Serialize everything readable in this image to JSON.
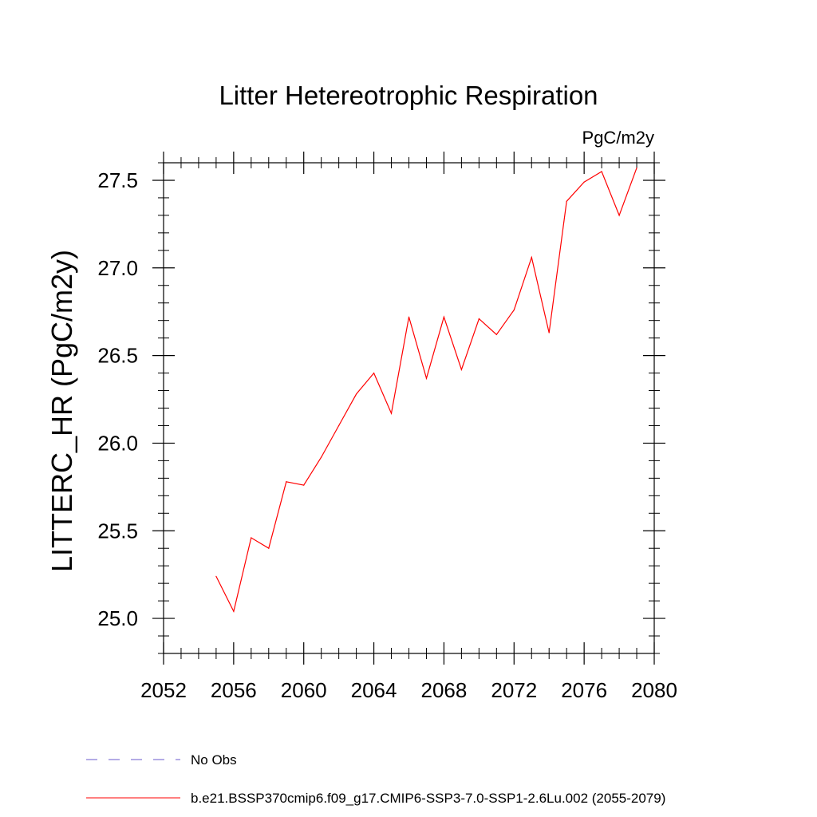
{
  "chart_data": {
    "type": "line",
    "title": "Litter Hetereotrophic Respiration",
    "units": "PgC/m2y",
    "ylabel": "LITTERC_HR  (PgC/m2y)",
    "xlabel": "",
    "xlim": [
      2052,
      2080
    ],
    "ylim": [
      24.8,
      27.6
    ],
    "xticks": [
      2052,
      2056,
      2060,
      2064,
      2068,
      2072,
      2076,
      2080
    ],
    "xtick_labels": [
      "2052",
      "2056",
      "2060",
      "2064",
      "2068",
      "2072",
      "2076",
      "2080"
    ],
    "yticks": [
      25.0,
      25.5,
      26.0,
      26.5,
      27.0,
      27.5
    ],
    "ytick_labels": [
      "25.0",
      "25.5",
      "26.0",
      "26.5",
      "27.0",
      "27.5"
    ],
    "x_minor_step": 1,
    "y_minor_step": 0.1,
    "series": [
      {
        "name": "b.e21.BSSP370cmip6.f09_g17.CMIP6-SSP3-7.0-SSP1-2.6Lu.002 (2055-2079)",
        "color": "#ff0000",
        "style": "solid",
        "x": [
          2055,
          2056,
          2057,
          2058,
          2059,
          2060,
          2061,
          2062,
          2063,
          2064,
          2065,
          2066,
          2067,
          2068,
          2069,
          2070,
          2071,
          2072,
          2073,
          2074,
          2075,
          2076,
          2077,
          2078,
          2079
        ],
        "values": [
          25.24,
          25.04,
          25.46,
          25.4,
          25.78,
          25.76,
          25.92,
          26.1,
          26.28,
          26.4,
          26.17,
          26.72,
          26.37,
          26.72,
          26.42,
          26.71,
          26.62,
          26.76,
          27.06,
          26.63,
          27.38,
          27.49,
          27.55,
          27.3,
          27.57
        ]
      }
    ],
    "legend": [
      {
        "label": "No Obs",
        "color": "#6a5acd",
        "style": "dashed"
      },
      {
        "label": "b.e21.BSSP370cmip6.f09_g17.CMIP6-SSP3-7.0-SSP1-2.6Lu.002 (2055-2079)",
        "color": "#ff0000",
        "style": "solid"
      }
    ],
    "legend_position": "bottom",
    "grid": false
  }
}
